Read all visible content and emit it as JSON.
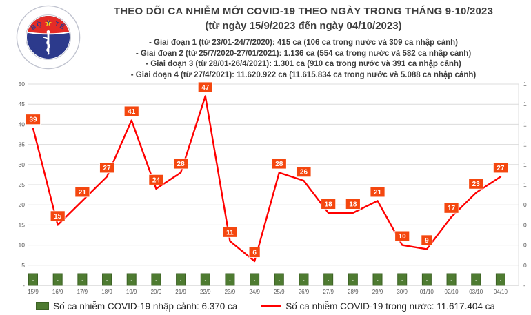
{
  "header": {
    "title": "THEO DÕI CA NHIỄM MỚI COVID-19 THEO NGÀY TRONG THÁNG 9-10/2023",
    "subtitle": "(từ ngày 15/9/2023 đến ngày 04/10/2023)",
    "phases": [
      "- Giai đoạn 1 (từ 23/01-24/7/2020): 415 ca (106 ca trong nước và 309 ca nhập cảnh)",
      "- Giai đoạn 2 (từ 25/7/2020-27/01/2021): 1.136 ca (554 ca trong nước và 582 ca nhập cảnh)",
      "- Giai đoạn 3 (từ 28/01-26/4/2021): 1.301 ca (910 ca trong nước và 391 ca nhập cảnh)",
      "- Giai đoạn 4 (từ 27/4/2021): 11.620.922 ca (11.615.834 ca trong nước và 5.088 ca nhập cảnh)"
    ],
    "text_color": "#3d3d3d"
  },
  "logo": {
    "top_text": "BỘ Y TẾ",
    "bottom_text": "MINISTRY OF HEALTH",
    "navy": "#2c3a8c",
    "red": "#e42b26",
    "star_yellow": "#f8d21a"
  },
  "chart_data": {
    "type": "line",
    "categories": [
      "15/9",
      "16/9",
      "17/9",
      "18/9",
      "19/9",
      "20/9",
      "21/9",
      "22/9",
      "23/9",
      "24/9",
      "25/9",
      "26/9",
      "27/9",
      "28/9",
      "29/9",
      "30/9",
      "01/10",
      "02/10",
      "03/10",
      "04/10"
    ],
    "series": [
      {
        "name": "Số ca nhiễm COVID-19 trong nước",
        "type": "line",
        "color": "#ff0000",
        "label_bg": "#f4470f",
        "label_text_color": "#ffffff",
        "values": [
          39,
          15,
          21,
          27,
          41,
          24,
          28,
          47,
          11,
          6,
          28,
          26,
          18,
          18,
          21,
          10,
          9,
          17,
          23,
          27
        ]
      },
      {
        "name": "Số ca nhiễm COVID-19 nhập cảnh",
        "type": "bar",
        "color": "#4e7b31",
        "border_color": "#3c6124",
        "values": [
          0,
          0,
          0,
          0,
          0,
          0,
          0,
          0,
          0,
          0,
          0,
          0,
          0,
          0,
          0,
          0,
          0,
          0,
          0,
          0
        ],
        "zero_display": "-"
      }
    ],
    "title": "THEO DÕI CA NHIỄM MỚI COVID-19 THEO NGÀY TRONG THÁNG 9-10/2023",
    "xlabel": "",
    "ylabel": "",
    "y_left": {
      "min": 0,
      "max": 50,
      "step": 5,
      "ticks": [
        "50",
        "45",
        "40",
        "35",
        "30",
        "25",
        "20",
        "15",
        "10",
        "5",
        "-"
      ]
    },
    "y_right": {
      "ticks": [
        "1",
        "1",
        "1",
        "1",
        "1",
        "1",
        "0",
        "0",
        "0",
        "0",
        "-"
      ]
    },
    "grid": true,
    "grid_color": "#dcdcdc",
    "axis_line_color": "#c6c6c6",
    "tick_text_color": "#595959",
    "legend_position": "bottom"
  },
  "legend": {
    "bar_label": "Số ca nhiễm COVID-19 nhập cảnh: 6.370 ca",
    "line_label": "Số ca nhiễm COVID-19 trong nước: 11.617.404 ca"
  }
}
